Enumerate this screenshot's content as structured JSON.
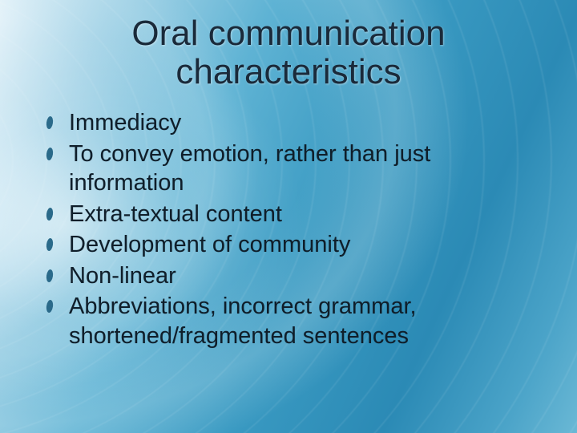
{
  "slide": {
    "title_line1": "Oral communication",
    "title_line2": "characteristics",
    "title_color": "#1a2a3a",
    "bullet_color": "#2a6a8a",
    "body_text_color": "#0f1e2a",
    "background_gradient_stops": [
      "#e8f4fa",
      "#a8d5e8",
      "#5fb3d4",
      "#3a9ac2",
      "#2b8ab5",
      "#4aa3c8",
      "#6ab8d5"
    ],
    "title_fontsize": 44,
    "body_fontsize": 29,
    "bullets": [
      "Immediacy",
      "To convey emotion, rather than just information",
      "Extra-textual content",
      "Development of community",
      "Non-linear",
      "Abbreviations, incorrect grammar, shortened/fragmented sentences"
    ]
  }
}
